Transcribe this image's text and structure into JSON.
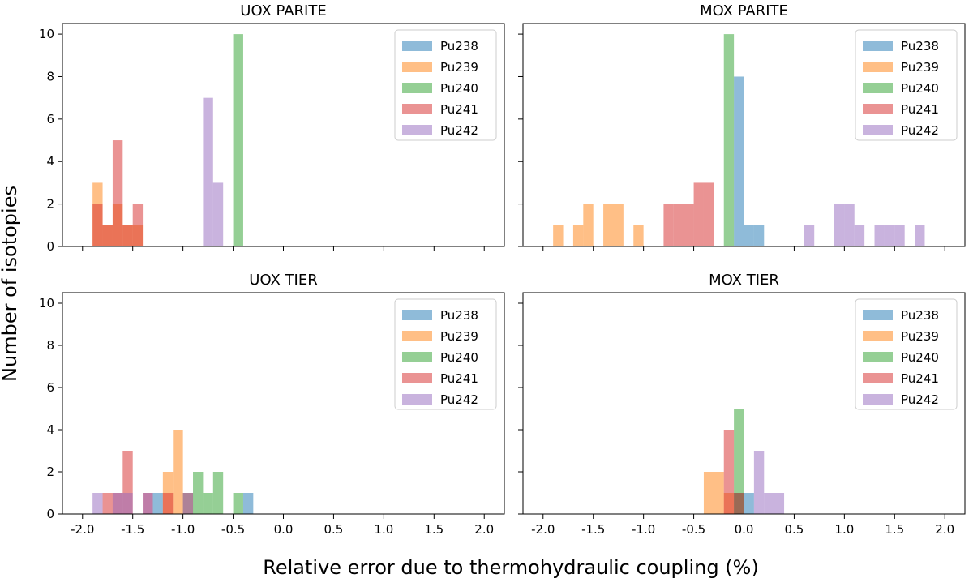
{
  "figure": {
    "ylabel": "Number of isotopies",
    "xlabel": "Relative error due to thermohydraulic coupling (%)"
  },
  "colors": {
    "Pu238": "#1f77b4",
    "Pu239": "#ff7f0e",
    "Pu240": "#2ca02c",
    "Pu241": "#d62728",
    "Pu242": "#9467bd"
  },
  "chart_data": [
    {
      "type": "bar",
      "title": "UOX PARITE",
      "xlim": [
        -2.2,
        2.2
      ],
      "ylim": [
        0,
        10.5
      ],
      "xticks": [
        "-2.0",
        "-1.5",
        "-1.0",
        "-0.5",
        "0.0",
        "0.5",
        "1.0",
        "1.5",
        "2.0"
      ],
      "yticks": [
        "0",
        "2",
        "4",
        "6",
        "8",
        "10"
      ],
      "bin_width": 0.1,
      "legend": "top-right",
      "series": [
        {
          "name": "Pu238",
          "bins": []
        },
        {
          "name": "Pu239",
          "bins": [
            [
              -1.9,
              3
            ],
            [
              -1.8,
              1
            ],
            [
              -1.7,
              2
            ],
            [
              -1.6,
              1
            ],
            [
              -1.5,
              1
            ]
          ]
        },
        {
          "name": "Pu240",
          "bins": [
            [
              -0.5,
              10
            ]
          ]
        },
        {
          "name": "Pu241",
          "bins": [
            [
              -1.9,
              2
            ],
            [
              -1.8,
              1
            ],
            [
              -1.7,
              5
            ],
            [
              -1.6,
              1
            ],
            [
              -1.5,
              2
            ]
          ]
        },
        {
          "name": "Pu242",
          "bins": [
            [
              -0.8,
              7
            ],
            [
              -0.7,
              3
            ]
          ]
        }
      ]
    },
    {
      "type": "bar",
      "title": "MOX PARITE",
      "xlim": [
        -2.2,
        2.2
      ],
      "ylim": [
        0,
        10.5
      ],
      "xticks": [
        "-2.0",
        "-1.5",
        "-1.0",
        "-0.5",
        "0.0",
        "0.5",
        "1.0",
        "1.5",
        "2.0"
      ],
      "yticks": [
        "0",
        "2",
        "4",
        "6",
        "8",
        "10"
      ],
      "bin_width": 0.1,
      "legend": "top-right",
      "series": [
        {
          "name": "Pu238",
          "bins": [
            [
              -0.1,
              8
            ],
            [
              0.0,
              1
            ],
            [
              0.1,
              1
            ]
          ]
        },
        {
          "name": "Pu239",
          "bins": [
            [
              -1.9,
              1
            ],
            [
              -1.7,
              1
            ],
            [
              -1.6,
              2
            ],
            [
              -1.4,
              2
            ],
            [
              -1.3,
              2
            ],
            [
              -1.1,
              1
            ]
          ]
        },
        {
          "name": "Pu240",
          "bins": [
            [
              -0.2,
              10
            ]
          ]
        },
        {
          "name": "Pu241",
          "bins": [
            [
              -0.8,
              2
            ],
            [
              -0.7,
              2
            ],
            [
              -0.6,
              2
            ],
            [
              -0.5,
              3
            ],
            [
              -0.4,
              3
            ]
          ]
        },
        {
          "name": "Pu242",
          "bins": [
            [
              0.6,
              1
            ],
            [
              0.9,
              2
            ],
            [
              1.0,
              2
            ],
            [
              1.1,
              1
            ],
            [
              1.3,
              1
            ],
            [
              1.4,
              1
            ],
            [
              1.5,
              1
            ],
            [
              1.7,
              1
            ]
          ]
        }
      ]
    },
    {
      "type": "bar",
      "title": "UOX TIER",
      "xlim": [
        -2.2,
        2.2
      ],
      "ylim": [
        0,
        10.5
      ],
      "xticks": [
        "-2.0",
        "-1.5",
        "-1.0",
        "-0.5",
        "0.0",
        "0.5",
        "1.0",
        "1.5",
        "2.0"
      ],
      "yticks": [
        "0",
        "2",
        "4",
        "6",
        "8",
        "10"
      ],
      "bin_width": 0.1,
      "legend": "top-right",
      "series": [
        {
          "name": "Pu238",
          "bins": [
            [
              -1.3,
              1
            ],
            [
              -1.0,
              1
            ],
            [
              -0.4,
              1
            ]
          ]
        },
        {
          "name": "Pu239",
          "bins": [
            [
              -1.2,
              2
            ],
            [
              -1.1,
              4
            ],
            [
              -1.0,
              1
            ]
          ]
        },
        {
          "name": "Pu240",
          "bins": [
            [
              -0.9,
              2
            ],
            [
              -0.8,
              1
            ],
            [
              -0.7,
              2
            ],
            [
              -0.5,
              1
            ]
          ]
        },
        {
          "name": "Pu241",
          "bins": [
            [
              -1.8,
              1
            ],
            [
              -1.7,
              1
            ],
            [
              -1.6,
              3
            ],
            [
              -1.4,
              1
            ],
            [
              -1.2,
              1
            ]
          ]
        },
        {
          "name": "Pu242",
          "bins": [
            [
              -1.9,
              1
            ],
            [
              -1.7,
              1
            ],
            [
              -1.6,
              1
            ],
            [
              -1.4,
              1
            ],
            [
              -1.0,
              1
            ]
          ]
        }
      ]
    },
    {
      "type": "bar",
      "title": "MOX TIER",
      "xlim": [
        -2.2,
        2.2
      ],
      "ylim": [
        0,
        10.5
      ],
      "xticks": [
        "-2.0",
        "-1.5",
        "-1.0",
        "-0.5",
        "0.0",
        "0.5",
        "1.0",
        "1.5",
        "2.0"
      ],
      "yticks": [
        "0",
        "2",
        "4",
        "6",
        "8",
        "10"
      ],
      "bin_width": 0.1,
      "legend": "top-right",
      "series": [
        {
          "name": "Pu238",
          "bins": [
            [
              -0.1,
              1
            ],
            [
              0.0,
              1
            ]
          ]
        },
        {
          "name": "Pu239",
          "bins": [
            [
              -0.4,
              2
            ],
            [
              -0.3,
              2
            ],
            [
              -0.2,
              1
            ]
          ]
        },
        {
          "name": "Pu240",
          "bins": [
            [
              -0.1,
              5
            ]
          ]
        },
        {
          "name": "Pu241",
          "bins": [
            [
              -0.2,
              4
            ],
            [
              -0.1,
              1
            ]
          ]
        },
        {
          "name": "Pu242",
          "bins": [
            [
              0.1,
              3
            ],
            [
              0.2,
              1
            ],
            [
              0.3,
              1
            ]
          ]
        }
      ]
    }
  ]
}
